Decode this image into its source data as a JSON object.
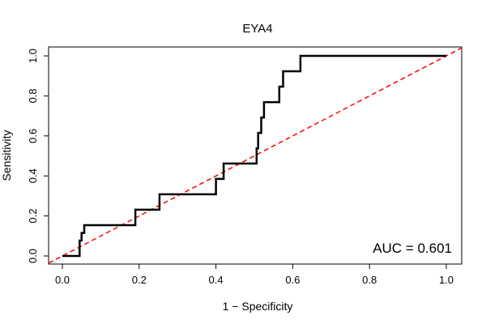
{
  "chart_data": {
    "type": "line",
    "title": "EYA4",
    "xlabel": "1 − Specificity",
    "ylabel": "Sensitivity",
    "xlim": [
      0,
      1
    ],
    "ylim": [
      0,
      1
    ],
    "x_ticks": [
      0.0,
      0.2,
      0.4,
      0.6,
      0.8,
      1.0
    ],
    "x_tick_labels": [
      "0.0",
      "0.2",
      "0.4",
      "0.6",
      "0.8",
      "1.0"
    ],
    "y_ticks": [
      0.0,
      0.2,
      0.4,
      0.6,
      0.8,
      1.0
    ],
    "y_tick_labels": [
      "0.0",
      "0.2",
      "0.4",
      "0.6",
      "0.8",
      "1.0"
    ],
    "grid": false,
    "annotation": "AUC = 0.601",
    "series": [
      {
        "name": "ROC curve",
        "color": "#000000",
        "x": [
          0.0,
          0.045,
          0.045,
          0.05,
          0.05,
          0.057,
          0.057,
          0.19,
          0.19,
          0.253,
          0.253,
          0.4,
          0.4,
          0.42,
          0.42,
          0.506,
          0.506,
          0.51,
          0.51,
          0.518,
          0.518,
          0.525,
          0.525,
          0.565,
          0.565,
          0.575,
          0.575,
          0.62,
          0.62,
          1.0
        ],
        "y": [
          0.0,
          0.0,
          0.077,
          0.077,
          0.115,
          0.115,
          0.154,
          0.154,
          0.231,
          0.231,
          0.308,
          0.308,
          0.385,
          0.385,
          0.462,
          0.462,
          0.538,
          0.538,
          0.615,
          0.615,
          0.692,
          0.692,
          0.769,
          0.769,
          0.846,
          0.846,
          0.923,
          0.923,
          1.0,
          1.0
        ]
      },
      {
        "name": "Reference line",
        "color": "#ff0000",
        "style": "dashed",
        "x": [
          0,
          1
        ],
        "y": [
          0,
          1
        ]
      }
    ]
  }
}
